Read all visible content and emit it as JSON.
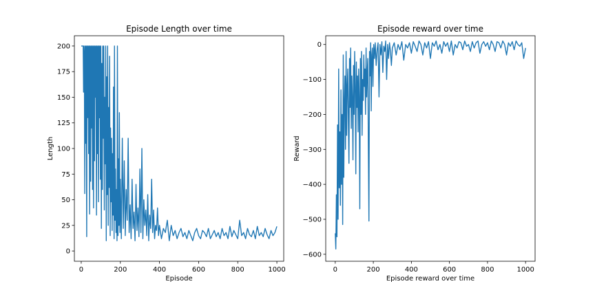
{
  "chart_data": [
    {
      "type": "line",
      "title": "Episode Length over time",
      "xlabel": "Episode",
      "ylabel": "Length",
      "xlim": [
        -35,
        1035
      ],
      "ylim": [
        -10,
        210
      ],
      "xticks": [
        0,
        200,
        400,
        600,
        800,
        1000
      ],
      "xtick_labels": [
        "0",
        "200",
        "400",
        "600",
        "800",
        "1000"
      ],
      "yticks": [
        0,
        25,
        50,
        75,
        100,
        125,
        150,
        175,
        200
      ],
      "ytick_labels": [
        "0",
        "25",
        "50",
        "75",
        "100",
        "125",
        "150",
        "175",
        "200"
      ],
      "grid": false,
      "color": "#1f77b4",
      "series": [
        {
          "x": [
            0,
            5,
            10,
            12,
            14,
            16,
            18,
            20,
            22,
            25,
            28,
            30,
            32,
            35,
            38,
            40,
            43,
            45,
            48,
            50,
            53,
            55,
            58,
            60,
            63,
            65,
            68,
            70,
            73,
            75,
            78,
            80,
            83,
            85,
            88,
            90,
            93,
            95,
            98,
            100,
            103,
            105,
            108,
            110,
            113,
            115,
            118,
            120,
            123,
            125,
            128,
            130,
            133,
            135,
            138,
            140,
            143,
            145,
            148,
            150,
            153,
            155,
            158,
            160,
            163,
            165,
            168,
            170,
            173,
            175,
            178,
            180,
            183,
            185,
            188,
            190,
            193,
            195,
            198,
            200,
            205,
            210,
            215,
            220,
            225,
            230,
            235,
            240,
            245,
            250,
            255,
            260,
            265,
            270,
            275,
            280,
            285,
            290,
            295,
            300,
            305,
            310,
            315,
            320,
            325,
            330,
            335,
            340,
            345,
            350,
            355,
            360,
            365,
            370,
            375,
            380,
            385,
            390,
            395,
            400,
            410,
            420,
            430,
            440,
            450,
            460,
            470,
            480,
            490,
            500,
            510,
            520,
            530,
            540,
            550,
            560,
            570,
            580,
            590,
            600,
            610,
            620,
            630,
            640,
            650,
            660,
            670,
            680,
            690,
            700,
            710,
            720,
            730,
            740,
            750,
            760,
            770,
            780,
            790,
            800,
            810,
            820,
            830,
            840,
            850,
            860,
            870,
            880,
            890,
            900,
            910,
            920,
            930,
            940,
            950,
            960,
            970,
            980,
            990,
            1000
          ],
          "y": [
            200,
            200,
            200,
            155,
            200,
            190,
            56,
            200,
            105,
            200,
            14,
            200,
            130,
            200,
            95,
            200,
            36,
            200,
            68,
            200,
            120,
            200,
            60,
            200,
            42,
            200,
            88,
            200,
            150,
            200,
            35,
            200,
            95,
            200,
            48,
            200,
            130,
            200,
            70,
            200,
            22,
            183,
            60,
            200,
            110,
            200,
            40,
            150,
            85,
            200,
            10,
            170,
            55,
            200,
            25,
            140,
            62,
            190,
            15,
            120,
            48,
            110,
            20,
            95,
            35,
            160,
            12,
            200,
            30,
            80,
            18,
            60,
            10,
            200,
            15,
            90,
            25,
            135,
            18,
            70,
            12,
            110,
            22,
            88,
            15,
            60,
            30,
            110,
            18,
            45,
            12,
            70,
            22,
            38,
            10,
            65,
            20,
            42,
            14,
            80,
            18,
            100,
            12,
            50,
            25,
            40,
            15,
            55,
            10,
            35,
            22,
            70,
            18,
            40,
            12,
            25,
            20,
            42,
            15,
            25,
            12,
            22,
            18,
            30,
            10,
            25,
            15,
            20,
            12,
            18,
            22,
            14,
            18,
            12,
            20,
            15,
            10,
            18,
            22,
            15,
            12,
            20,
            18,
            14,
            22,
            12,
            16,
            20,
            14,
            18,
            12,
            22,
            15,
            18,
            12,
            24,
            14,
            20,
            16,
            12,
            30,
            15,
            18,
            12,
            22,
            16,
            14,
            20,
            12,
            24,
            15,
            18,
            14,
            22,
            16,
            12,
            20,
            15,
            18,
            24
          ]
        }
      ]
    },
    {
      "type": "line",
      "title": "Episode reward over time",
      "xlabel": "Episode reward over time",
      "ylabel": "Reward",
      "xlim": [
        -50,
        1050
      ],
      "ylim": [
        -620,
        25
      ],
      "xticks": [
        0,
        200,
        400,
        600,
        800,
        1000
      ],
      "xtick_labels": [
        "0",
        "200",
        "400",
        "600",
        "800",
        "1000"
      ],
      "yticks": [
        -600,
        -500,
        -400,
        -300,
        -200,
        -100,
        0
      ],
      "ytick_labels": [
        "−600",
        "−500",
        "−400",
        "−300",
        "−200",
        "−100",
        "0"
      ],
      "grid": false,
      "color": "#1f77b4",
      "series": [
        {
          "x": [
            0,
            3,
            6,
            9,
            12,
            15,
            18,
            21,
            24,
            27,
            30,
            33,
            36,
            39,
            42,
            45,
            48,
            51,
            54,
            57,
            60,
            63,
            66,
            69,
            72,
            75,
            78,
            81,
            84,
            87,
            90,
            93,
            96,
            99,
            102,
            105,
            108,
            111,
            114,
            117,
            120,
            123,
            126,
            129,
            132,
            135,
            138,
            141,
            144,
            147,
            150,
            153,
            156,
            159,
            162,
            165,
            168,
            171,
            174,
            177,
            180,
            183,
            186,
            189,
            192,
            195,
            198,
            202,
            206,
            210,
            215,
            220,
            225,
            230,
            235,
            240,
            245,
            250,
            255,
            260,
            265,
            270,
            275,
            280,
            285,
            290,
            295,
            300,
            310,
            320,
            330,
            340,
            350,
            360,
            370,
            380,
            390,
            400,
            410,
            420,
            430,
            440,
            450,
            460,
            470,
            480,
            490,
            500,
            510,
            520,
            530,
            540,
            550,
            560,
            570,
            580,
            590,
            600,
            610,
            620,
            630,
            640,
            650,
            660,
            670,
            680,
            690,
            700,
            710,
            720,
            730,
            740,
            750,
            760,
            770,
            780,
            790,
            800,
            810,
            820,
            830,
            840,
            850,
            860,
            870,
            880,
            890,
            900,
            910,
            920,
            930,
            940,
            950,
            960,
            970,
            980,
            990,
            1000
          ],
          "y": [
            -540,
            -585,
            -430,
            -550,
            -230,
            -500,
            -70,
            -410,
            -250,
            -460,
            -130,
            -400,
            -200,
            -515,
            -30,
            -380,
            -160,
            -90,
            -300,
            -20,
            -260,
            -120,
            -70,
            -220,
            -340,
            -40,
            -180,
            -10,
            -240,
            -90,
            -150,
            -330,
            -60,
            -200,
            -20,
            -120,
            -370,
            -50,
            -180,
            -90,
            -250,
            -70,
            -150,
            -470,
            -40,
            -200,
            -20,
            -260,
            -100,
            -160,
            -30,
            -120,
            -70,
            -200,
            -10,
            -150,
            -80,
            -40,
            -300,
            -505,
            -20,
            -90,
            5,
            -190,
            -30,
            -10,
            -120,
            0,
            -40,
            5,
            -60,
            -15,
            5,
            -150,
            0,
            -30,
            8,
            -80,
            -5,
            -20,
            10,
            -100,
            0,
            -40,
            5,
            -20,
            -60,
            -10,
            5,
            -30,
            0,
            -15,
            8,
            -45,
            0,
            -10,
            5,
            -25,
            8,
            -5,
            -20,
            10,
            0,
            -30,
            5,
            -10,
            8,
            -40,
            5,
            -5,
            10,
            -15,
            0,
            -25,
            8,
            -5,
            5,
            -20,
            10,
            -30,
            0,
            -10,
            8,
            5,
            -15,
            10,
            -5,
            0,
            -20,
            8,
            -10,
            5,
            10,
            -25,
            0,
            8,
            -5,
            5,
            -15,
            10,
            0,
            -20,
            8,
            5,
            -10,
            10,
            0,
            -30,
            5,
            -5,
            8,
            -15,
            10,
            0,
            -5,
            5,
            -40,
            -10
          ]
        }
      ]
    }
  ]
}
